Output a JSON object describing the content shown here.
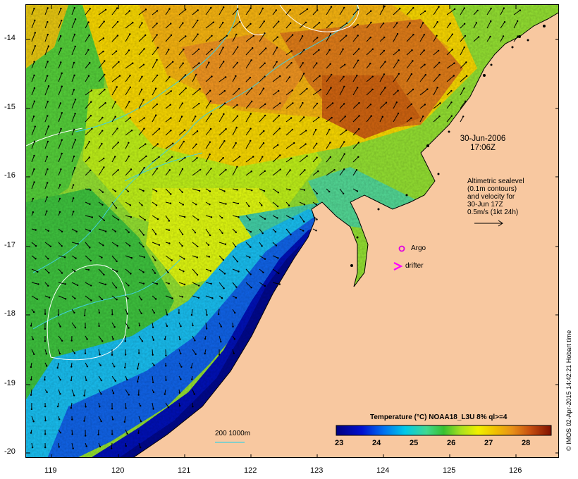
{
  "map": {
    "date_line1": "30-Jun-2006",
    "date_line2": "17:06Z",
    "altimetry_note": [
      "Altimetric sealevel",
      "(0.1m contours)",
      "and velocity for",
      "30-Jun 17Z",
      "0.5m/s (1kt 24h)"
    ],
    "legend_argo": "Argo",
    "legend_drifter": "drifter",
    "depth_legend": "200  1000m",
    "credit": "© IMOS 02-Apr-2015 14:42:21 Hobart time",
    "colorbar_title": "Temperature (°C) NOAA18_L3U 8% ql>=4",
    "colorbar_ticks": [
      "23",
      "24",
      "25",
      "26",
      "27",
      "28"
    ],
    "x_ticks": [
      "119",
      "120",
      "121",
      "122",
      "123",
      "124",
      "125",
      "126"
    ],
    "y_ticks": [
      "-14",
      "-15",
      "-16",
      "-17",
      "-18",
      "-19",
      "-20"
    ],
    "colors": {
      "land": "#f8c8a0",
      "argo": "#e000e0",
      "drifter": "#ff00ff",
      "depth_contour": "#40d0e0",
      "sealevel_contour": "#ffffff"
    }
  }
}
